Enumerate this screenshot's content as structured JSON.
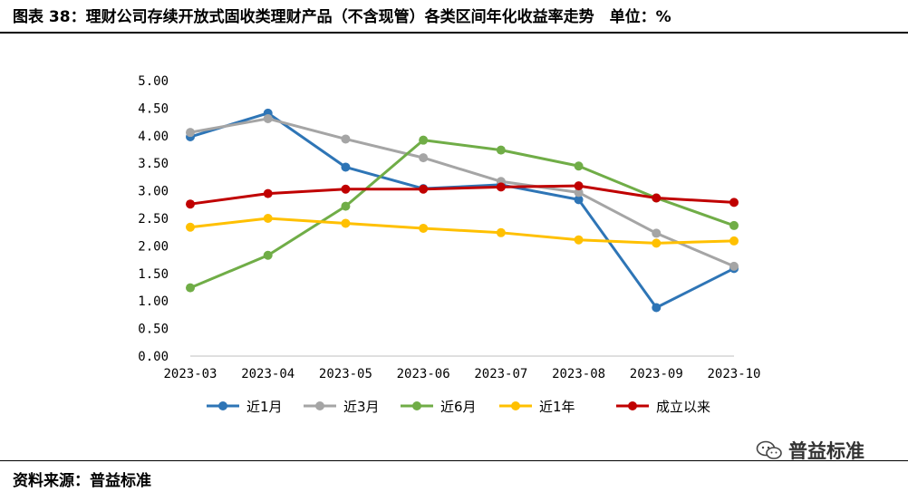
{
  "title": "图表 38：理财公司存续开放式固收类理财产品（不含现管）各类区间年化收益率走势　单位：%",
  "source": "资料来源：普益标准",
  "watermark": {
    "text": "普益标准",
    "icon": "wechat-icon"
  },
  "chart_data": {
    "type": "line",
    "categories": [
      "2023-03",
      "2023-04",
      "2023-05",
      "2023-06",
      "2023-07",
      "2023-08",
      "2023-09",
      "2023-10"
    ],
    "ylim": [
      0,
      5
    ],
    "yticks": [
      "0.00",
      "0.50",
      "1.00",
      "1.50",
      "2.00",
      "2.50",
      "3.00",
      "3.50",
      "4.00",
      "4.50",
      "5.00"
    ],
    "grid": false,
    "legend": "bottom",
    "series": [
      {
        "name": "近1月",
        "color": "#2e75b6",
        "values": [
          3.98,
          4.41,
          3.43,
          3.04,
          3.11,
          2.84,
          0.88,
          1.59
        ]
      },
      {
        "name": "近3月",
        "color": "#a5a5a5",
        "values": [
          4.06,
          4.31,
          3.94,
          3.6,
          3.17,
          2.97,
          2.23,
          1.63
        ]
      },
      {
        "name": "近6月",
        "color": "#70ad47",
        "values": [
          1.24,
          1.83,
          2.72,
          3.92,
          3.74,
          3.45,
          2.87,
          2.37
        ]
      },
      {
        "name": "近1年",
        "color": "#ffc000",
        "values": [
          2.34,
          2.5,
          2.41,
          2.32,
          2.24,
          2.11,
          2.05,
          2.09
        ]
      },
      {
        "name": "成立以来",
        "color": "#c00000",
        "values": [
          2.76,
          2.95,
          3.03,
          3.03,
          3.07,
          3.09,
          2.87,
          2.79
        ]
      }
    ]
  }
}
